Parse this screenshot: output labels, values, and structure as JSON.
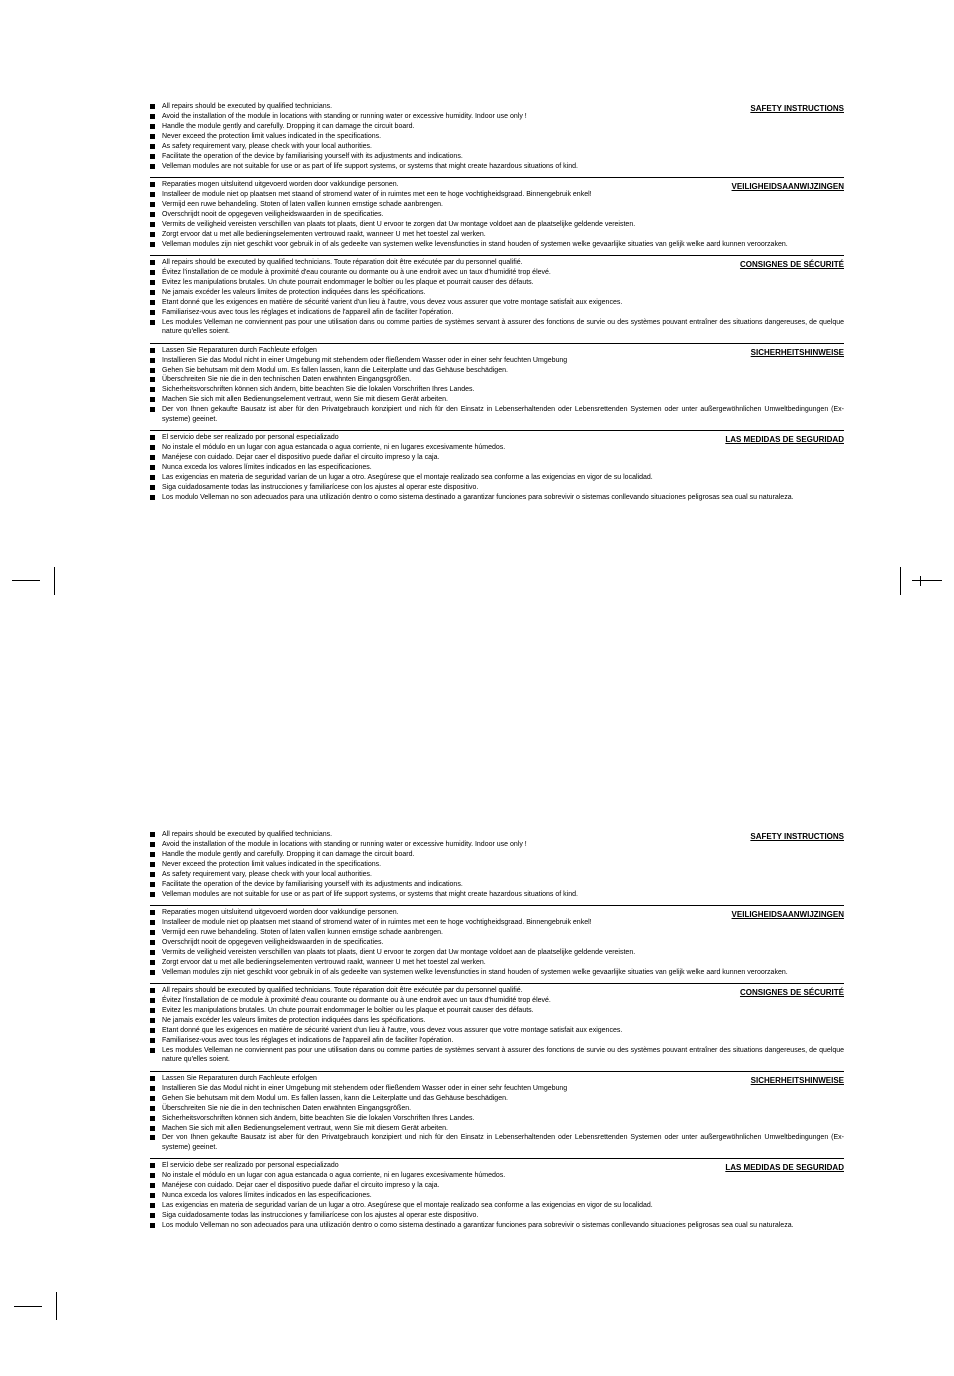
{
  "sections": [
    {
      "title": "SAFETY INSTRUCTIONS",
      "items": [
        "All repairs should be executed by qualified technicians.",
        "Avoid the installation of the module in locations with standing or running water or excessive humidity.  Indoor use only !",
        "Handle the module gently and carefully. Dropping it can damage the circuit board.",
        "Never exceed the protection limit values indicated in the specifications.",
        "As safety requirement vary, please check with your local authorities.",
        "Facilitate the operation of the device by familiarising yourself with its adjustments and indications.",
        "Velleman modules are not suitable for use or as part of life support systems, or systems that might create hazardous situations of kind."
      ]
    },
    {
      "title": "VEILIGHEIDSAANWIJZINGEN",
      "items": [
        "Reparaties mogen uitsluitend uitgevoerd worden door vakkundige personen.",
        "Installeer de module niet op plaatsen met staand of stromend water of in ruimtes met een te hoge vochtigheidsgraad.  Binnengebruik enkel!",
        "Vermijd  een ruwe behandeling. Stoten of laten vallen kunnen ernstige schade aanbrengen.",
        "Overschrijdt nooit de opgegeven veiligheidswaarden in de specificaties.",
        "Vermits de veiligheid vereisten verschillen van plaats tot plaats, dient U ervoor te zorgen dat Uw montage voldoet aan de plaatselijke geldende vereisten.",
        "Zorgt ervoor dat u met alle bedieningselementen vertrouwd raakt, wanneer U met het toestel zal werken.",
        "Velleman modules zijn niet geschikt voor gebruik in of als gedeelte van systemen welke levensfuncties in stand houden of systemen welke gevaarlijke situaties van gelijk welke aard kunnen veroorzaken."
      ]
    },
    {
      "title": "CONSIGNES DE SÉCURITÉ",
      "items": [
        "All repairs should be executed by qualified technicians. Toute réparation doit être exécutée par du personnel qualifié.",
        "Évitez l'installation de ce module à proximité d'eau courante ou dormante ou à une endroit avec un taux d'humidité trop élevé.",
        "Evitez les manipulations brutales. Un chute pourrait endommager le boîtier ou les plaque et pourrait causer des défauts.",
        "Ne jamais excéder les valeurs limites de protection indiquées dans les spécifications.",
        "Etant donné que les exigences en matière de sécurité varient d'un lieu à l'autre, vous devez vous assurer que votre montage satisfait aux exigences.",
        "Familiarisez-vous avec tous les réglages et indications de l'appareil afin de faciliter l'opération.",
        "Les modules Velleman ne conviennent pas pour une utilisation dans ou comme parties de systèmes servant à assurer des fonctions de survie ou des systèmes pouvant entraîner des situations dangereuses, de quelque nature qu'elles soient."
      ]
    },
    {
      "title": "SICHERHEITSHINWEISE",
      "items": [
        "Lassen Sie Reparaturen durch Fachleute erfolgen",
        "Installieren Sie das Modul nicht in einer Umgebung mit stehendem oder fließendem Wasser oder in einer sehr feuchten Umgebung",
        "Gehen Sie behutsam mit dem Modul um. Es fallen lassen, kann die Leiterplatte und das Gehäuse beschädigen.",
        "Überschreiten Sie nie die in den technischen Daten erwähnten Eingangsgrößen.",
        "Sicherheitsvorschriften können sich ändern, bitte beachten Sie die lokalen Vorschriften Ihres Landes.",
        "Machen Sie sich mit allen Bedienungselement vertraut, wenn Sie mit diesem Gerät arbeiten.",
        "Der von Ihnen gekaufte Bausatz ist aber für den Privatgebrauch konzipiert und nich für den Einsatz in Lebenserhaltenden oder Lebensrettenden Systemen oder unter außergewöhnlichen Umweltbedingungen (Ex-systeme) geeinet."
      ]
    },
    {
      "title": "LAS MEDIDAS DE SEGURIDAD",
      "items": [
        "El servicio debe ser realizado por personal especializado",
        "No instale el módulo en un lugar con agua estancada o agua corriente, ni en lugares excesivamente húmedos.",
        "Manéjese con cuidado. Dejar caer el dispositivo puede dañar el circuito impreso y la caja.",
        "Nunca exceda los valores límites indicados en las especificaciones.",
        "Las exigencias en materia de seguridad varían de un lugar a otro. Asegúrese que el montaje realizado sea conforme a las exigencias en vigor de su localidad.",
        "Siga cuidadosamente todas las instrucciones y familiarícese con los ajustes al operar este dispositivo.",
        "Los modulo Velleman no son adecuados para una utilización dentro o como sistema destinado a garantizar funciones para sobrevivir o sistemas conllevando situaciones peligrosas sea cual su naturaleza."
      ]
    }
  ]
}
